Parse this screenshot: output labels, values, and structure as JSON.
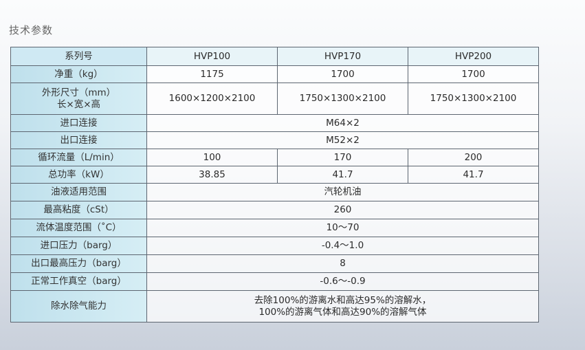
{
  "title": "技术参数",
  "table": {
    "header": {
      "label": "系列号",
      "models": [
        "HVP100",
        "HVP170",
        "HVP200"
      ]
    },
    "rows": [
      {
        "label": "净重（kg）",
        "values": [
          "1175",
          "1700",
          "1700"
        ]
      },
      {
        "label": "外形尺寸（mm）",
        "label2": "长×宽×高",
        "values": [
          "1600×1200×2100",
          "1750×1300×2100",
          "1750×1300×2100"
        ]
      },
      {
        "label": "进口连接",
        "value": "M64×2"
      },
      {
        "label": "出口连接",
        "value": "M52×2"
      },
      {
        "label": "循环流量（L/min）",
        "values": [
          "100",
          "170",
          "200"
        ]
      },
      {
        "label": "总功率（kW）",
        "values": [
          "38.85",
          "41.7",
          "41.7"
        ]
      },
      {
        "label": "油液适用范围",
        "value": "汽轮机油"
      },
      {
        "label": "最高粘度（cSt）",
        "value": "260"
      },
      {
        "label": "流体温度范围（˚C）",
        "value": "10～70"
      },
      {
        "label": "进口压力（barg）",
        "value": "-0.4～1.0"
      },
      {
        "label": "出口最高压力（barg）",
        "value": "8"
      },
      {
        "label": "正常工作真空（barg）",
        "value": "-0.6～-0.9"
      },
      {
        "label": "除水除气能力",
        "value": "去除100%的游离水和高达95%的溶解水，",
        "value2": "100%的游离气体和高达90%的溶解气体"
      }
    ]
  }
}
